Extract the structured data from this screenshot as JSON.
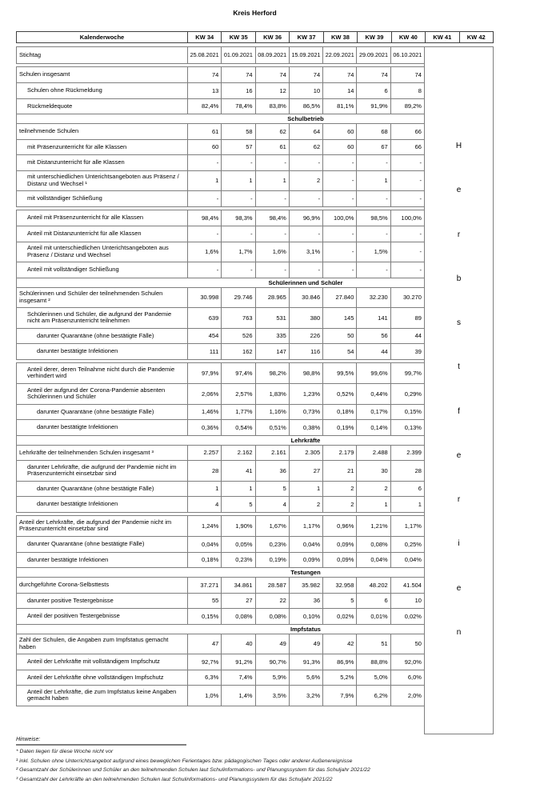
{
  "title": "Kreis Herford",
  "colors": {
    "body_border": "#7f7f7f",
    "header_border": "#404040",
    "text": "#000000",
    "background": "#ffffff"
  },
  "table": {
    "header": {
      "label": "Kalenderwoche",
      "weeks": [
        "KW 34",
        "KW 35",
        "KW 36",
        "KW 37",
        "KW 38",
        "KW 39",
        "KW 40",
        "KW 41",
        "KW 42"
      ]
    },
    "segments": [
      {
        "rows": [
          {
            "label": "Stichtag",
            "indent": 0,
            "lines": 1,
            "align": "center",
            "values": [
              "25.08.2021",
              "01.09.2021",
              "08.09.2021",
              "15.09.2021",
              "22.09.2021",
              "29.09.2021",
              "06.10.2021"
            ]
          }
        ]
      },
      {
        "rows": [
          {
            "label": "Schulen insgesamt",
            "indent": 0,
            "lines": 1,
            "values": [
              "74",
              "74",
              "74",
              "74",
              "74",
              "74",
              "74"
            ]
          },
          {
            "label": "Schulen ohne Rückmeldung",
            "indent": 1,
            "lines": 1,
            "values": [
              "13",
              "16",
              "12",
              "10",
              "14",
              "6",
              "8"
            ]
          },
          {
            "label": "Rückmeldequote",
            "indent": 1,
            "lines": 1,
            "values": [
              "82,4%",
              "78,4%",
              "83,8%",
              "86,5%",
              "81,1%",
              "91,9%",
              "89,2%"
            ]
          },
          {
            "section": "Schulbetrieb"
          },
          {
            "label": "teilnehmende Schulen",
            "indent": 0,
            "lines": 1,
            "values": [
              "61",
              "58",
              "62",
              "64",
              "60",
              "68",
              "66"
            ]
          },
          {
            "label": "mit Präsenzunterricht für alle Klassen",
            "indent": 1,
            "lines": 1,
            "values": [
              "60",
              "57",
              "61",
              "62",
              "60",
              "67",
              "66"
            ]
          },
          {
            "label": "mit Distanzunterricht für alle Klassen",
            "indent": 1,
            "lines": 1,
            "values": [
              "-",
              "-",
              "-",
              "-",
              "-",
              "-",
              "-"
            ]
          },
          {
            "label": "mit unterschiedlichen Unterichtsangeboten aus Präsenz / Distanz und Wechsel ¹",
            "indent": 1,
            "lines": 2,
            "values": [
              "1",
              "1",
              "1",
              "2",
              "-",
              "1",
              "-"
            ]
          },
          {
            "label": "mit vollständiger Schließung",
            "indent": 1,
            "lines": 1,
            "values": [
              "-",
              "-",
              "-",
              "-",
              "-",
              "-",
              "-"
            ]
          }
        ]
      },
      {
        "rows": [
          {
            "label": "Anteil mit Präsenzunterricht für alle Klassen",
            "indent": 1,
            "lines": 1,
            "values": [
              "98,4%",
              "98,3%",
              "98,4%",
              "96,9%",
              "100,0%",
              "98,5%",
              "100,0%"
            ]
          },
          {
            "label": "Anteil mit Distanzunterricht für alle Klassen",
            "indent": 1,
            "lines": 1,
            "values": [
              "-",
              "-",
              "-",
              "-",
              "-",
              "-",
              "-"
            ]
          },
          {
            "label": "Anteil mit unterschiedlichen Unterichtsangeboten aus Präsenz / Distanz und Wechsel",
            "indent": 1,
            "lines": 2,
            "values": [
              "1,6%",
              "1,7%",
              "1,6%",
              "3,1%",
              "-",
              "1,5%",
              "-"
            ]
          },
          {
            "label": "Anteil mit vollständiger Schließung",
            "indent": 1,
            "lines": 1,
            "values": [
              "-",
              "-",
              "-",
              "-",
              "-",
              "-",
              "-"
            ]
          },
          {
            "section": "Schülerinnen und Schüler"
          },
          {
            "label": "Schülerinnen und Schüler der teilnehmenden Schulen insgesamt ²",
            "indent": 0,
            "lines": 2,
            "values": [
              "30.998",
              "29.746",
              "28.965",
              "30.846",
              "27.840",
              "32.230",
              "30.270"
            ]
          },
          {
            "label": "Schülerinnen und Schüler, die aufgrund der Pandemie nicht am Präsenzunterricht teilnehmen",
            "indent": 1,
            "lines": 2,
            "values": [
              "639",
              "763",
              "531",
              "380",
              "145",
              "141",
              "89"
            ]
          },
          {
            "label": "darunter Quarantäne (ohne bestätigte Fälle)",
            "indent": 2,
            "lines": 1,
            "values": [
              "454",
              "526",
              "335",
              "226",
              "50",
              "56",
              "44"
            ]
          },
          {
            "label": "darunter bestätigte Infektionen",
            "indent": 2,
            "lines": 1,
            "values": [
              "111",
              "162",
              "147",
              "116",
              "54",
              "44",
              "39"
            ]
          }
        ]
      },
      {
        "rows": [
          {
            "label": "Anteil derer, deren Teilnahme nicht durch die Pandemie verhindert wird",
            "indent": 1,
            "lines": 2,
            "values": [
              "97,9%",
              "97,4%",
              "98,2%",
              "98,8%",
              "99,5%",
              "99,6%",
              "99,7%"
            ]
          },
          {
            "label": "Anteil der aufgrund der Corona-Pandemie absenten Schülerinnen und Schüler",
            "indent": 1,
            "lines": 2,
            "values": [
              "2,06%",
              "2,57%",
              "1,83%",
              "1,23%",
              "0,52%",
              "0,44%",
              "0,29%"
            ]
          },
          {
            "label": "darunter Quarantäne (ohne bestätigte Fälle)",
            "indent": 2,
            "lines": 1,
            "values": [
              "1,46%",
              "1,77%",
              "1,16%",
              "0,73%",
              "0,18%",
              "0,17%",
              "0,15%"
            ]
          },
          {
            "label": "darunter bestätigte Infektionen",
            "indent": 2,
            "lines": 1,
            "values": [
              "0,36%",
              "0,54%",
              "0,51%",
              "0,38%",
              "0,19%",
              "0,14%",
              "0,13%"
            ]
          },
          {
            "section": "Lehrkräfte"
          },
          {
            "label": "Lehrkräfte der teilnehmenden Schulen insgesamt ³",
            "indent": 0,
            "lines": 1,
            "values": [
              "2.257",
              "2.162",
              "2.161",
              "2.305",
              "2.179",
              "2.488",
              "2.399"
            ]
          },
          {
            "label": "darunter Lehrkräfte, die aufgrund der Pandemie nicht im Präsenzunterricht einsetzbar sind",
            "indent": 1,
            "lines": 2,
            "values": [
              "28",
              "41",
              "36",
              "27",
              "21",
              "30",
              "28"
            ]
          },
          {
            "label": "darunter Quarantäne (ohne bestätigte Fälle)",
            "indent": 2,
            "lines": 1,
            "values": [
              "1",
              "1",
              "5",
              "1",
              "2",
              "2",
              "6"
            ]
          },
          {
            "label": "darunter bestätigte Infektionen",
            "indent": 2,
            "lines": 1,
            "values": [
              "4",
              "5",
              "4",
              "2",
              "2",
              "1",
              "1"
            ]
          }
        ]
      },
      {
        "rows": [
          {
            "label": "Anteil der Lehrkräfte, die aufgrund der Pandemie nicht im Präsenzunterricht einsetzbar sind",
            "indent": 0,
            "lines": 2,
            "values": [
              "1,24%",
              "1,90%",
              "1,67%",
              "1,17%",
              "0,96%",
              "1,21%",
              "1,17%"
            ]
          },
          {
            "label": "darunter Quarantäne (ohne bestätigte Fälle)",
            "indent": 1,
            "lines": 1,
            "values": [
              "0,04%",
              "0,05%",
              "0,23%",
              "0,04%",
              "0,09%",
              "0,08%",
              "0,25%"
            ]
          },
          {
            "label": "darunter bestätigte Infektionen",
            "indent": 1,
            "lines": 1,
            "values": [
              "0,18%",
              "0,23%",
              "0,19%",
              "0,09%",
              "0,09%",
              "0,04%",
              "0,04%"
            ]
          },
          {
            "section": "Testungen"
          },
          {
            "label": "durchgeführte Corona-Selbsttests",
            "indent": 0,
            "lines": 1,
            "values": [
              "37.271",
              "34.861",
              "28.587",
              "35.982",
              "32.958",
              "48.202",
              "41.504"
            ]
          },
          {
            "label": "darunter positive Testergebnisse",
            "indent": 1,
            "lines": 1,
            "values": [
              "55",
              "27",
              "22",
              "36",
              "5",
              "6",
              "10"
            ]
          },
          {
            "label": "Anteil der positiven Testergebnisse",
            "indent": 1,
            "lines": 1,
            "values": [
              "0,15%",
              "0,08%",
              "0,08%",
              "0,10%",
              "0,02%",
              "0,01%",
              "0,02%"
            ]
          },
          {
            "section": "Impfstatus"
          },
          {
            "label": "Zahl der Schulen, die Angaben zum Impfstatus gemacht haben",
            "indent": 0,
            "lines": 2,
            "values": [
              "47",
              "40",
              "49",
              "49",
              "42",
              "51",
              "50"
            ]
          },
          {
            "label": "Anteil der Lehrkräfte mit vollständigem Impfschutz",
            "indent": 1,
            "lines": 1,
            "values": [
              "92,7%",
              "91,2%",
              "90,7%",
              "91,3%",
              "86,9%",
              "88,8%",
              "92,0%"
            ]
          },
          {
            "label": "Anteil der Lehrkräfte ohne vollständigen Impfschutz",
            "indent": 1,
            "lines": 1,
            "values": [
              "6,3%",
              "7,4%",
              "5,9%",
              "5,6%",
              "5,2%",
              "5,0%",
              "6,0%"
            ]
          },
          {
            "label": "Anteil der Lehrkräfte, die zum Impfstatus keine Angaben gemacht haben",
            "indent": 1,
            "lines": 2,
            "values": [
              "1,0%",
              "1,4%",
              "3,5%",
              "3,2%",
              "7,9%",
              "6,2%",
              "2,0%"
            ]
          }
        ]
      }
    ]
  },
  "holiday": {
    "word": "Herbstferien",
    "letters": [
      "H",
      "e",
      "r",
      "b",
      "s",
      "t",
      "f",
      "e",
      "r",
      "i",
      "e",
      "n"
    ]
  },
  "footnotes": {
    "heading": "Hinweise:",
    "notes": [
      "* Daten liegen für diese Woche nicht vor",
      "¹ inkl. Schulen ohne Unterrichtsangebot aufgrund eines beweglichen Ferientages bzw. pädagogischen Tages oder anderer Außenereignisse",
      "² Gesamtzahl der Schülerinnen und Schüler an den teilnehmenden Schulen laut Schulinformations- und Planungssystem für das Schuljahr 2021/22",
      "³ Gesamtzahl der Lehrkräfte an den teilnehmenden Schulen laut Schulinformations- und Planungssystem für das Schuljahr 2021/22"
    ]
  }
}
